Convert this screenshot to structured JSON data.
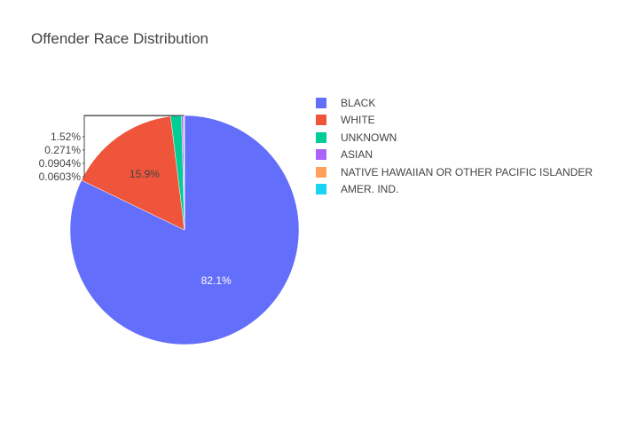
{
  "chart_data": {
    "type": "pie",
    "title": "Offender Race Distribution",
    "slices": [
      {
        "label": "BLACK",
        "percent": 82.1,
        "percent_label": "82.1%",
        "color": "#636efa"
      },
      {
        "label": "WHITE",
        "percent": 15.9,
        "percent_label": "15.9%",
        "color": "#ef553b"
      },
      {
        "label": "UNKNOWN",
        "percent": 1.52,
        "percent_label": "1.52%",
        "color": "#00cc96"
      },
      {
        "label": "ASIAN",
        "percent": 0.271,
        "percent_label": "0.271%",
        "color": "#ab63fa"
      },
      {
        "label": "NATIVE HAWAIIAN OR OTHER PACIFIC ISLANDER",
        "percent": 0.0904,
        "percent_label": "0.0904%",
        "color": "#ffa15a"
      },
      {
        "label": "AMER. IND.",
        "percent": 0.0603,
        "percent_label": "0.0603%",
        "color": "#19d3f3"
      }
    ],
    "start_angle": "12 o'clock",
    "direction": "clockwise",
    "legend_position": "right"
  }
}
